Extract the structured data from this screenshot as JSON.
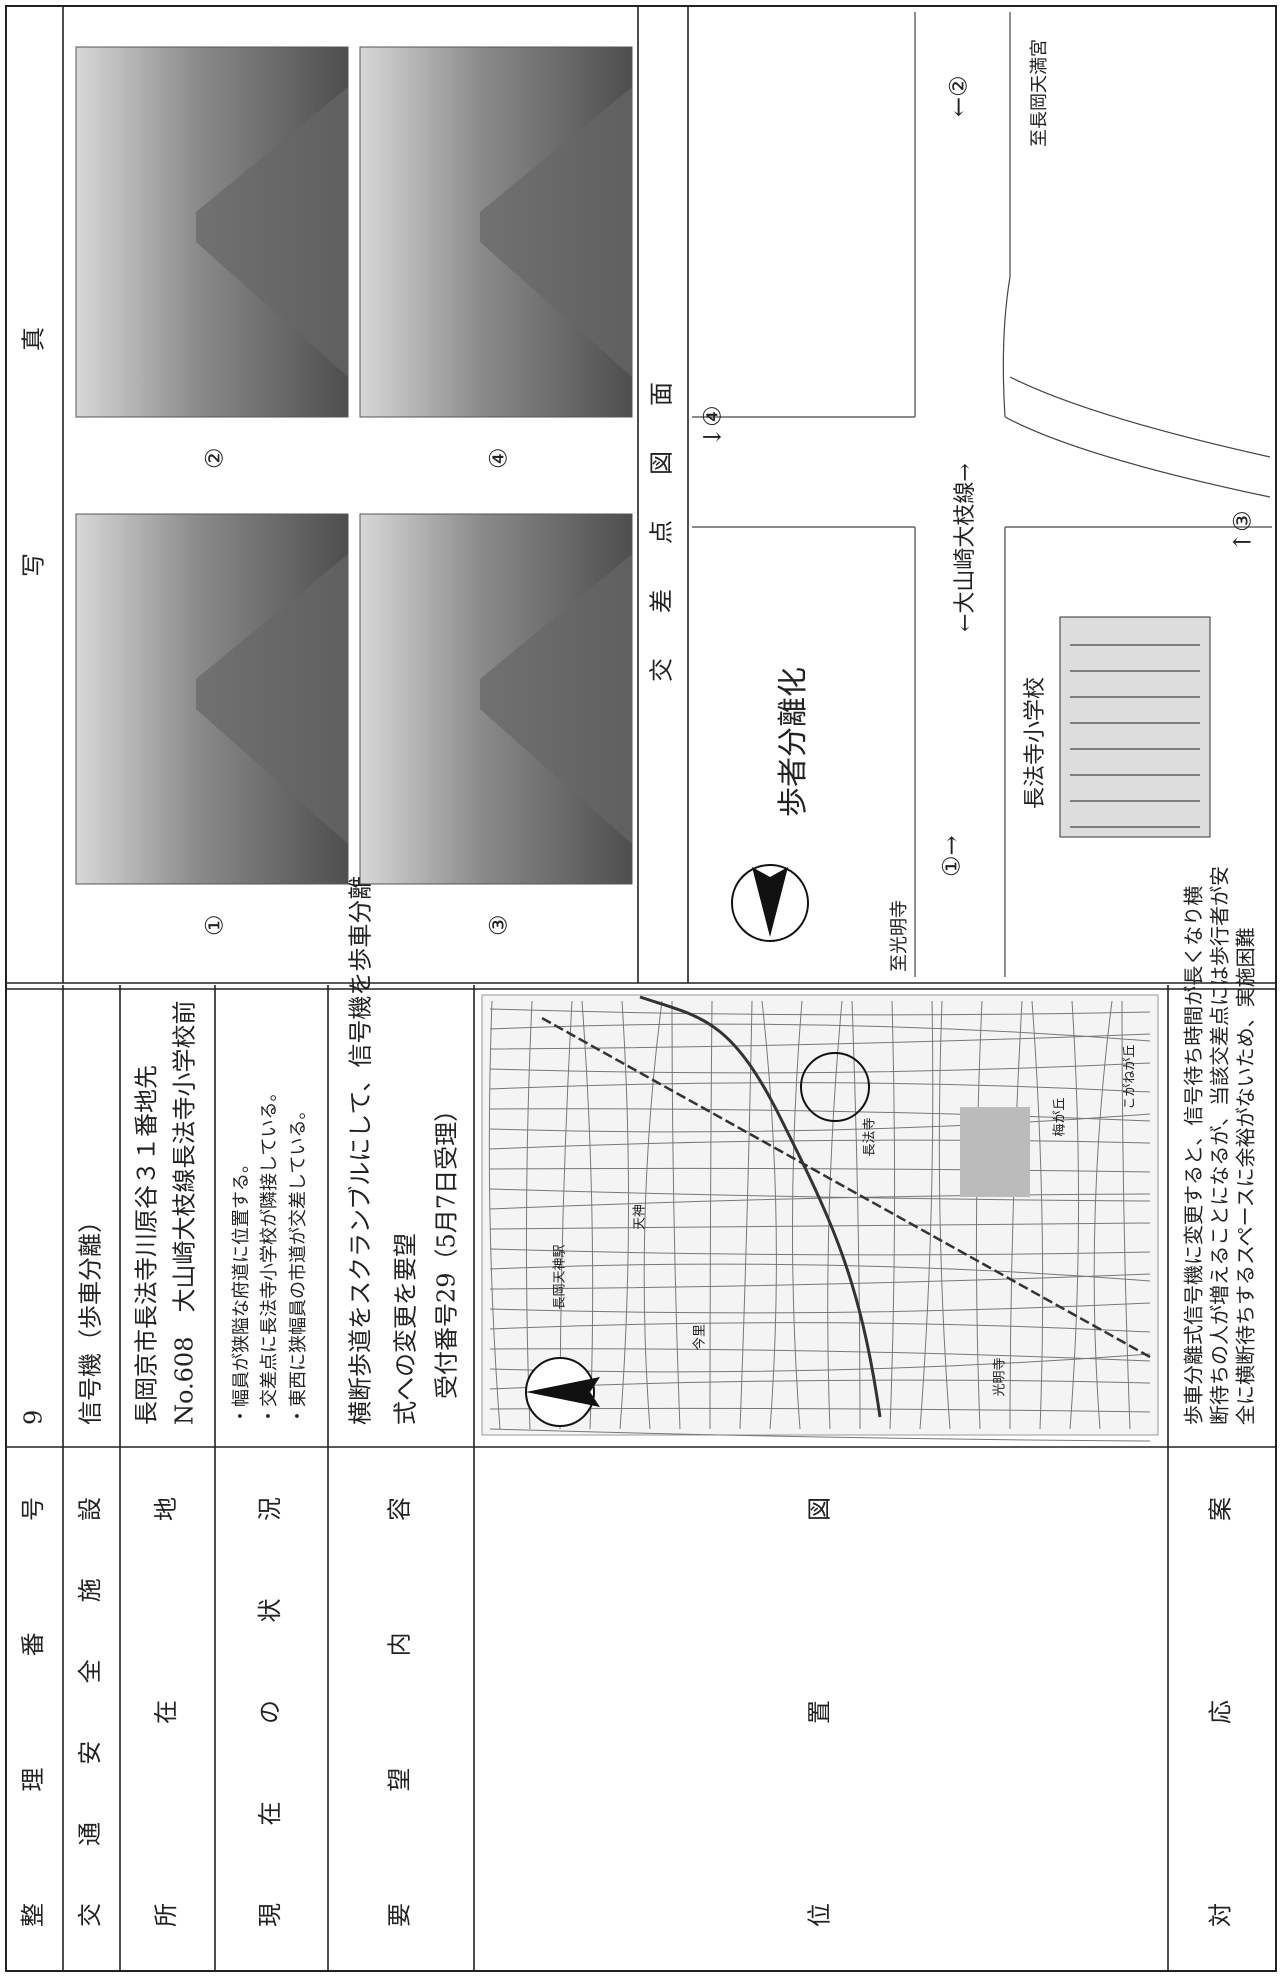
{
  "rows": [
    {
      "label": "整 理 番 号",
      "value": [
        "9"
      ]
    },
    {
      "label": "交 通 安 全 施 設",
      "value": [
        "信号機（歩車分離）"
      ]
    },
    {
      "label": "所 在 地",
      "value": [
        "長岡京市長法寺川原谷３１番地先",
        "No.608　大山崎大枝線長法寺小学校前"
      ]
    },
    {
      "label": "現 在 の 状 況",
      "value": [
        "・幅員が狭隘な府道に位置する。",
        "・交差点に長法寺小学校が隣接している。",
        "・東西に狭幅員の市道が交差している。"
      ]
    },
    {
      "label": "要 望 内 容",
      "value": [
        "横断歩道をスクランブルにして、信号機を歩車分離",
        "式への変更を要望",
        "受付番号29（5月7日受理）"
      ]
    },
    {
      "label": "位 置 図"
    },
    {
      "label": "対 応 案",
      "value": [
        "歩車分離式信号機に変更すると、信号待ち時間が長くなり横",
        "断待ちの人が増えることになるが、当該交差点には歩行者が安",
        "全に横断待ちするスペースに余裕がないため、実施困難"
      ]
    }
  ],
  "map": {
    "place_names": [
      "長法寺",
      "今里",
      "天神",
      "長岡天神駅",
      "梅が丘",
      "こがねが丘",
      "光明寺"
    ]
  },
  "photos": {
    "title": "写 真",
    "labels": [
      "①",
      "②",
      "③",
      "④"
    ]
  },
  "intersection": {
    "title": "交 差 点 図 面",
    "note": "歩者分離化",
    "school": "長法寺小学校",
    "road": "←大山崎大枝線→",
    "to_west": "至光明寺",
    "to_east": "至長岡天満宮",
    "points": [
      "①→",
      "←②",
      "↑③",
      "↓④"
    ]
  }
}
